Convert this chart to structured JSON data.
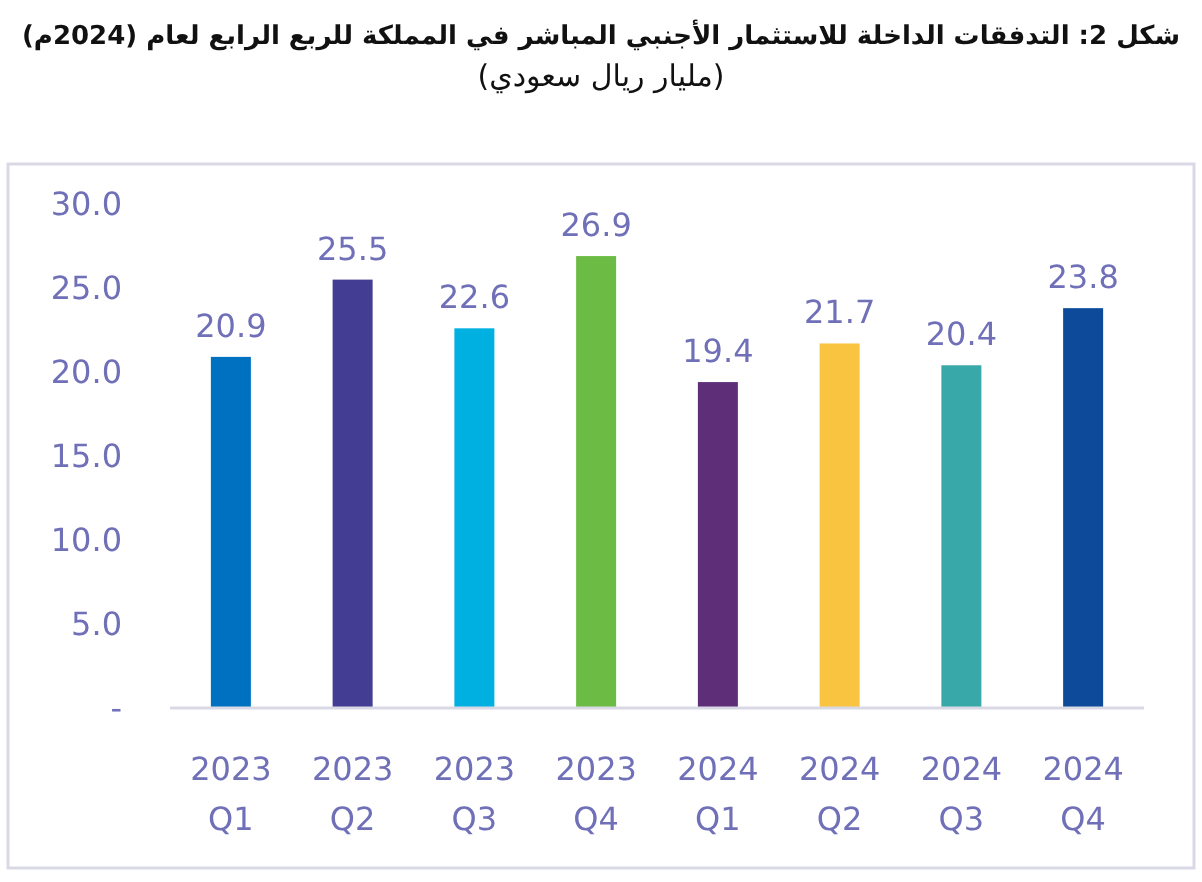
{
  "chart_data": {
    "type": "bar",
    "title": "شكل 2: التدفقات الداخلة للاستثمار الأجنبي المباشر في المملكة للربع الرابع لعام (2024م)",
    "subtitle": "(مليار ريال سعودي)",
    "categories": [
      "2023 Q1",
      "2023 Q2",
      "2023 Q3",
      "2023 Q4",
      "2024 Q1",
      "2024 Q2",
      "2024 Q3",
      "2024 Q4"
    ],
    "values": [
      20.9,
      25.5,
      22.6,
      26.9,
      19.4,
      21.7,
      20.4,
      23.8
    ],
    "colors": [
      "#0070c0",
      "#433e93",
      "#00b0e0",
      "#6cbb45",
      "#5e2f78",
      "#f9c540",
      "#39a8a9",
      "#0d4b9a"
    ],
    "ylim": [
      0,
      30
    ],
    "yticks": [
      {
        "value": 0,
        "label": "-"
      },
      {
        "value": 5,
        "label": "5.0"
      },
      {
        "value": 10,
        "label": "10.0"
      },
      {
        "value": 15,
        "label": "15.0"
      },
      {
        "value": 20,
        "label": "20.0"
      },
      {
        "value": 25,
        "label": "25.0"
      },
      {
        "value": 30,
        "label": "30.0"
      }
    ],
    "grid": false,
    "data_labels": true
  }
}
